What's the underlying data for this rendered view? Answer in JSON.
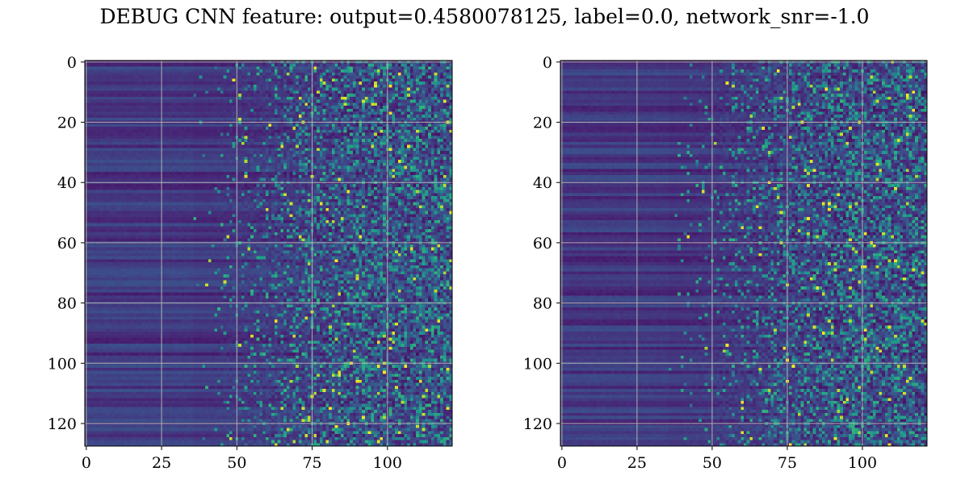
{
  "title": "DEBUG CNN feature: output=0.4580078125, label=0.0, network_snr=-1.0",
  "chart_data": [
    {
      "type": "heatmap",
      "title": "",
      "xlabel": "",
      "ylabel": "",
      "colormap": "viridis",
      "rows": 128,
      "cols": 122,
      "xlim": [
        -0.5,
        121.5
      ],
      "ylim": [
        127.5,
        -0.5
      ],
      "xticks": [
        0,
        25,
        50,
        75,
        100
      ],
      "yticks": [
        0,
        20,
        40,
        60,
        80,
        100,
        120
      ],
      "grid": true,
      "seed": 7
    },
    {
      "type": "heatmap",
      "title": "",
      "xlabel": "",
      "ylabel": "",
      "colormap": "viridis",
      "rows": 128,
      "cols": 122,
      "xlim": [
        -0.5,
        121.5
      ],
      "ylim": [
        127.5,
        -0.5
      ],
      "xticks": [
        0,
        25,
        50,
        75,
        100
      ],
      "yticks": [
        0,
        20,
        40,
        60,
        80,
        100,
        120
      ],
      "grid": true,
      "seed": 19
    }
  ]
}
